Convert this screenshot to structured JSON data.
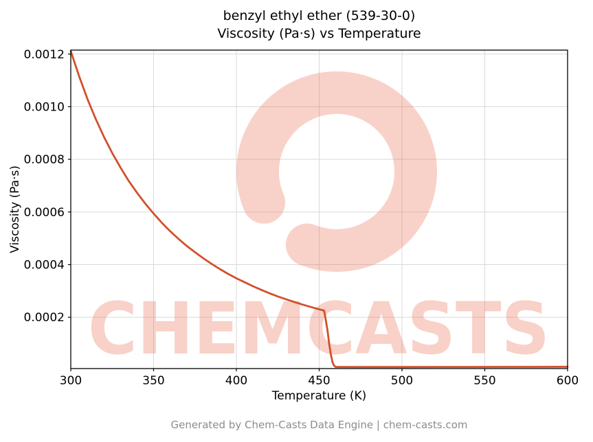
{
  "title": {
    "line1": "benzyl ethyl ether (539-30-0)",
    "line2": "Viscosity (Pa·s) vs Temperature"
  },
  "footer": "Generated by Chem-Casts Data Engine | chem-casts.com",
  "watermark": {
    "text": "CHEMCASTS",
    "logo": "c-swirl-icon",
    "color": "#e96a4b",
    "opacity": 0.3
  },
  "chart_data": {
    "type": "line",
    "title": "benzyl ethyl ether (539-30-0)\nViscosity (Pa·s) vs Temperature",
    "xlabel": "Temperature (K)",
    "ylabel": "Viscosity (Pa·s)",
    "xlim": [
      300,
      600
    ],
    "ylim": [
      5e-06,
      0.001215
    ],
    "xticks": [
      300,
      350,
      400,
      450,
      500,
      550,
      600
    ],
    "xtick_labels": [
      "300",
      "350",
      "400",
      "450",
      "500",
      "550",
      "600"
    ],
    "yticks": [
      0.0002,
      0.0004,
      0.0006,
      0.0008,
      0.001,
      0.0012
    ],
    "ytick_labels": [
      "0.0002",
      "0.0004",
      "0.0006",
      "0.0008",
      "0.0010",
      "0.0012"
    ],
    "grid": true,
    "legend": false,
    "line_color": "#d0512b",
    "grid_color": "#d9d9d9",
    "series": [
      {
        "name": "viscosity",
        "x": [
          300,
          305,
          310,
          315,
          320,
          325,
          330,
          335,
          340,
          345,
          350,
          355,
          360,
          365,
          370,
          375,
          380,
          385,
          390,
          395,
          400,
          405,
          410,
          415,
          420,
          425,
          430,
          435,
          440,
          445,
          450,
          452,
          453,
          454,
          455,
          456,
          457,
          458,
          459,
          460,
          470,
          480,
          500,
          520,
          540,
          560,
          580,
          600
        ],
        "y": [
          0.001211,
          0.001117,
          0.00103,
          0.000954,
          0.000886,
          0.000824,
          0.000769,
          0.000718,
          0.000673,
          0.000632,
          0.000594,
          0.000559,
          0.000527,
          0.000498,
          0.000471,
          0.000447,
          0.000424,
          0.000403,
          0.000383,
          0.000365,
          0.000348,
          0.000333,
          0.000318,
          0.000304,
          0.000291,
          0.000279,
          0.000268,
          0.000258,
          0.000248,
          0.000239,
          0.00023,
          0.000227,
          0.000225,
          0.00019,
          0.00015,
          0.0001,
          6e-05,
          3e-05,
          1.6e-05,
          1.12e-05,
          1.09e-05,
          1.1e-05,
          1.11e-05,
          1.12e-05,
          1.13e-05,
          1.14e-05,
          1.15e-05,
          1.17e-05
        ]
      }
    ]
  }
}
